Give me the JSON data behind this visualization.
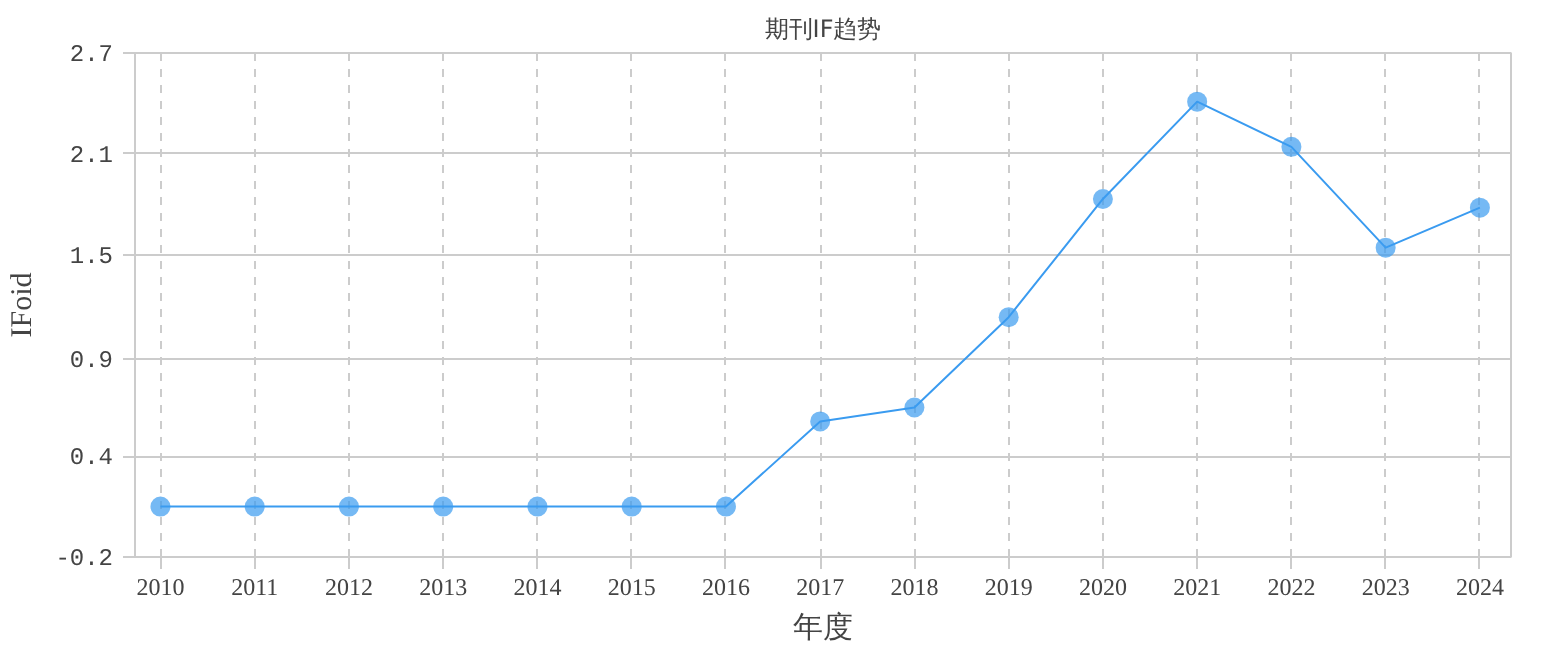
{
  "chart_data": {
    "type": "line",
    "title": "期刊IF趋势",
    "xlabel": "年度",
    "ylabel": "IFoid",
    "x": [
      2010,
      2011,
      2012,
      2013,
      2014,
      2015,
      2016,
      2017,
      2018,
      2019,
      2020,
      2021,
      2022,
      2023,
      2024
    ],
    "series": [
      {
        "color": "#3a9bf0",
        "values": [
          0.09,
          0.09,
          0.09,
          0.09,
          0.09,
          0.09,
          0.09,
          0.58,
          0.66,
          1.18,
          1.86,
          2.42,
          2.16,
          1.58,
          1.81
        ]
      }
    ],
    "xlim": [
      2009.73,
      2024.33
    ],
    "xticks": [
      2010,
      2011,
      2012,
      2013,
      2014,
      2015,
      2016,
      2017,
      2018,
      2019,
      2020,
      2021,
      2022,
      2023,
      2024
    ],
    "ylim": [
      -0.2,
      2.7
    ],
    "yticks": [
      -0.2,
      {
        "value": 0.38,
        "label": "0.4"
      },
      {
        "value": 0.94,
        "label": "0.9"
      },
      {
        "value": 1.54,
        "label": "1.5"
      },
      {
        "value": 2.12,
        "label": "2.1"
      },
      2.7
    ],
    "grid": true,
    "marker": "circle",
    "line_style": "solid"
  }
}
